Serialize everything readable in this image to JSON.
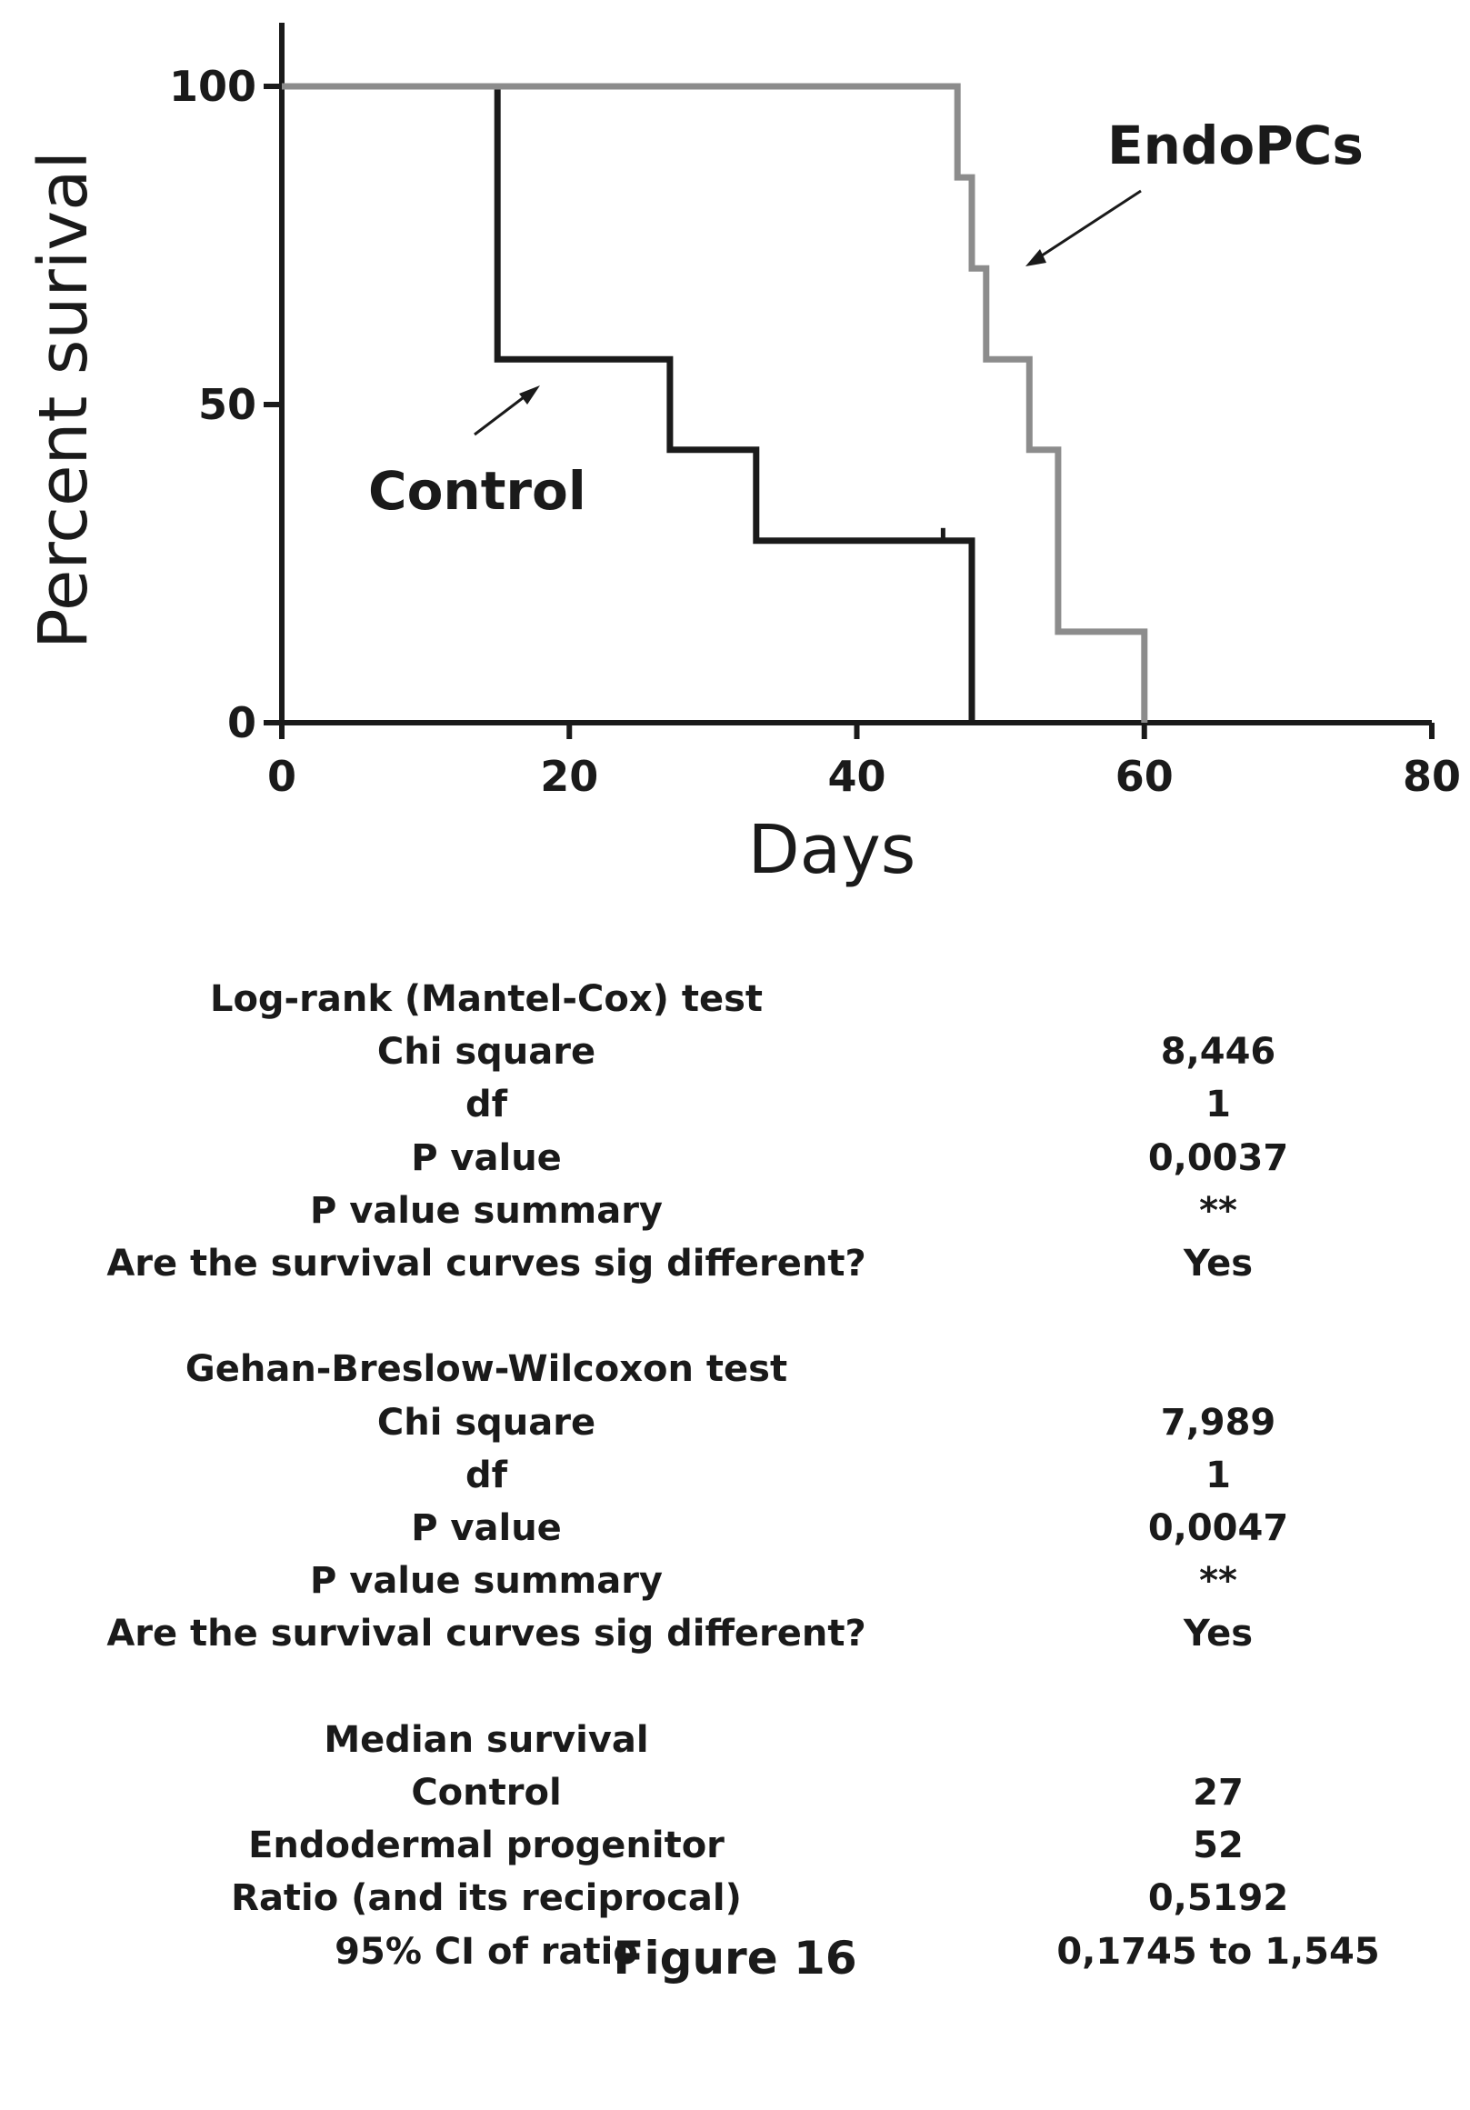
{
  "chart_data": {
    "type": "line",
    "xlabel": "Days",
    "ylabel": "Percent surival",
    "xlim": [
      0,
      80
    ],
    "ylim": [
      0,
      100
    ],
    "x_ticks": [
      "0",
      "20",
      "40",
      "60",
      "80"
    ],
    "y_ticks": [
      "0",
      "50",
      "100"
    ],
    "grid": false,
    "series": [
      {
        "name": "Control",
        "color": "#1a1a1a",
        "x": [
          0,
          15,
          15,
          27,
          27,
          33,
          33,
          48,
          48
        ],
        "y": [
          100,
          100,
          57.1,
          57.1,
          42.9,
          42.9,
          28.6,
          28.6,
          0
        ],
        "censored": [
          {
            "x": 46,
            "y": 28.6
          }
        ]
      },
      {
        "name": "EndoPCs",
        "color": "#8c8c8c",
        "x": [
          0,
          47,
          47,
          48,
          48,
          49,
          49,
          52,
          52,
          54,
          54,
          60,
          60
        ],
        "y": [
          100,
          100,
          85.7,
          85.7,
          71.4,
          71.4,
          57.1,
          57.1,
          42.9,
          42.9,
          14.3,
          14.3,
          0
        ],
        "censored": []
      }
    ]
  },
  "stats": [
    {
      "label": "Log-rank (Mantel-Cox) test",
      "value": ""
    },
    {
      "label": "Chi square",
      "value": "8,446"
    },
    {
      "label": "df",
      "value": "1"
    },
    {
      "label": "P value",
      "value": "0,0037"
    },
    {
      "label": "P value summary",
      "value": "**"
    },
    {
      "label": "Are the survival curves sig different?",
      "value": "Yes"
    },
    {
      "label": "",
      "value": ""
    },
    {
      "label": "Gehan-Breslow-Wilcoxon test",
      "value": ""
    },
    {
      "label": "Chi square",
      "value": "7,989"
    },
    {
      "label": "df",
      "value": "1"
    },
    {
      "label": "P value",
      "value": "0,0047"
    },
    {
      "label": "P value summary",
      "value": "**"
    },
    {
      "label": "Are the survival curves sig different?",
      "value": "Yes"
    },
    {
      "label": "",
      "value": ""
    },
    {
      "label": "Median survival",
      "value": ""
    },
    {
      "label": "Control",
      "value": "27"
    },
    {
      "label": "Endodermal progenitor",
      "value": "52"
    },
    {
      "label": "Ratio (and its reciprocal)",
      "value": "0,5192"
    },
    {
      "label": "95% CI of ratio",
      "value": "0,1745 to 1,545"
    }
  ],
  "caption": "Figure 16"
}
